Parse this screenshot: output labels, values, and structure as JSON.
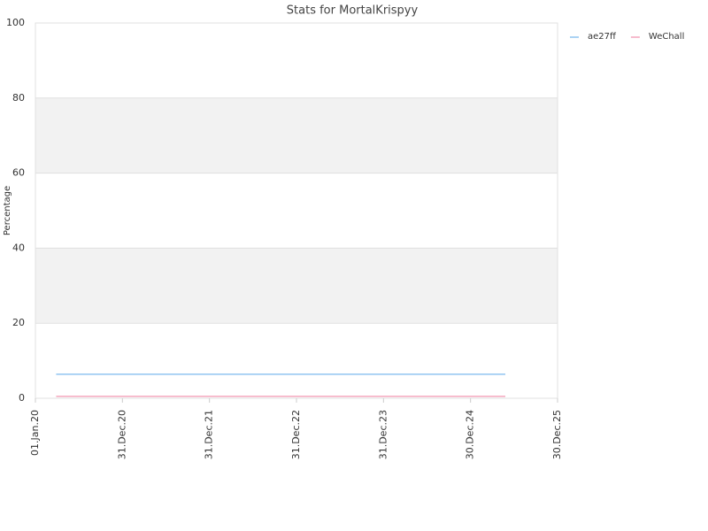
{
  "chart_data": {
    "type": "line",
    "title": "Stats for MortalKrispyy",
    "ylabel": "Percentage",
    "x": [
      "2020-03-28",
      "2025-05-25"
    ],
    "series": [
      {
        "name": "ae27ff",
        "color": "#90c4f0",
        "values": [
          6.4,
          6.4
        ]
      },
      {
        "name": "WeChall",
        "color": "#f4a6bd",
        "values": [
          0.5,
          0.5
        ]
      }
    ],
    "xlim": [
      "2020-01-01",
      "2025-12-30"
    ],
    "xticks": [
      {
        "value": "2020-01-01",
        "label": "01.Jan.20"
      },
      {
        "value": "2020-12-31",
        "label": "31.Dec.20"
      },
      {
        "value": "2021-12-31",
        "label": "31.Dec.21"
      },
      {
        "value": "2022-12-31",
        "label": "31.Dec.22"
      },
      {
        "value": "2023-12-31",
        "label": "31.Dec.23"
      },
      {
        "value": "2024-12-30",
        "label": "30.Dec.24"
      },
      {
        "value": "2025-12-30",
        "label": "30.Dec.25"
      }
    ],
    "ylim": [
      0,
      100
    ],
    "yticks": [
      0,
      20,
      40,
      60,
      80,
      100
    ],
    "grid": true,
    "band_color": "#f2f2f2",
    "legend": "top-right"
  }
}
